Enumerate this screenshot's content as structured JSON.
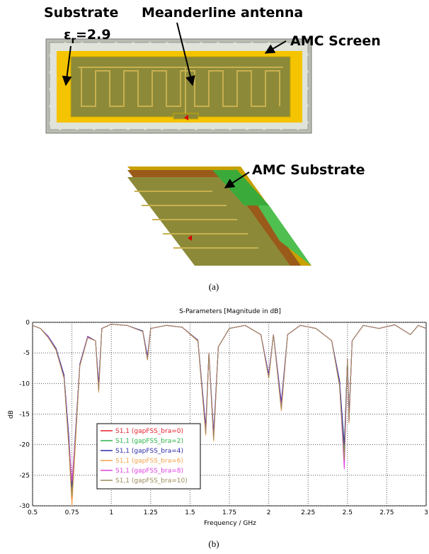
{
  "figure": {
    "labels": {
      "substrate": "Substrate",
      "permittivity": {
        "symbol": "ε",
        "sub": "r",
        "tail": "=2.9"
      },
      "meander": "Meanderline antenna",
      "amc_screen": "AMC Screen",
      "amc_substrate": "AMC Substrate"
    },
    "caption_a": "(a)",
    "caption_b": "(b)"
  },
  "chart_data": {
    "type": "line",
    "title": "S-Parameters [Magnitude in dB]",
    "xlabel": "Frequency / GHz",
    "ylabel": "dB",
    "xlim": [
      0.5,
      3
    ],
    "xticks": [
      0.5,
      0.75,
      1,
      1.25,
      1.5,
      1.75,
      2,
      2.25,
      2.5,
      2.75,
      3
    ],
    "ylim": [
      -30,
      0
    ],
    "yticks": [
      0,
      -5,
      -10,
      -15,
      -20,
      -25,
      -30
    ],
    "grid": true,
    "legend_loc": "lower left",
    "x": [
      0.5,
      0.55,
      0.6,
      0.65,
      0.7,
      0.73,
      0.75,
      0.77,
      0.8,
      0.85,
      0.9,
      0.92,
      0.94,
      1.0,
      1.1,
      1.2,
      1.23,
      1.25,
      1.35,
      1.45,
      1.55,
      1.6,
      1.62,
      1.65,
      1.68,
      1.75,
      1.85,
      1.95,
      2.0,
      2.03,
      2.08,
      2.12,
      2.2,
      2.3,
      2.4,
      2.45,
      2.48,
      2.5,
      2.51,
      2.53,
      2.6,
      2.7,
      2.8,
      2.9,
      2.95,
      3.0
    ],
    "series": [
      {
        "name": "S1,1 (gapFSS_bra=0)",
        "color": "#e8202a",
        "values": [
          -0.5,
          -1,
          -2.5,
          -4.5,
          -9,
          -20,
          -29,
          -20,
          -7,
          -2.5,
          -3,
          -11,
          -1,
          -0.3,
          -0.5,
          -1.5,
          -6,
          -1,
          -0.5,
          -0.8,
          -3,
          -18,
          -5,
          -19,
          -4,
          -1,
          -0.5,
          -2,
          -9,
          -2,
          -14,
          -2,
          -0.5,
          -1,
          -3,
          -10,
          -22,
          -6,
          -16,
          -3,
          -0.5,
          -1,
          -0.4,
          -2,
          -0.5,
          -1
        ]
      },
      {
        "name": "S1,1 (gapFSS_bra=2)",
        "color": "#2db34a",
        "values": [
          -0.5,
          -1,
          -2.4,
          -4.4,
          -8.8,
          -19,
          -28,
          -19,
          -7,
          -2.4,
          -3,
          -10.5,
          -1,
          -0.3,
          -0.5,
          -1.4,
          -5.8,
          -1,
          -0.5,
          -0.8,
          -3,
          -17.5,
          -5,
          -18.5,
          -4,
          -1,
          -0.5,
          -2,
          -8.8,
          -2,
          -13.5,
          -2,
          -0.5,
          -1,
          -3,
          -10,
          -21,
          -6,
          -15.5,
          -3,
          -0.5,
          -1,
          -0.4,
          -2,
          -0.5,
          -1
        ]
      },
      {
        "name": "S1,1 (gapFSS_bra=4)",
        "color": "#2a2aa8",
        "values": [
          -0.5,
          -1,
          -2.3,
          -4.3,
          -8.6,
          -18.5,
          -27,
          -19,
          -6.8,
          -2.3,
          -3,
          -10,
          -1,
          -0.3,
          -0.5,
          -1.4,
          -5.5,
          -1,
          -0.5,
          -0.8,
          -2.9,
          -17,
          -5,
          -18,
          -4,
          -1,
          -0.5,
          -2,
          -8.5,
          -2,
          -13,
          -2,
          -0.5,
          -1,
          -3,
          -9.5,
          -20,
          -6,
          -15,
          -3,
          -0.5,
          -1,
          -0.4,
          -2,
          -0.5,
          -1
        ]
      },
      {
        "name": "S1,1 (gapFSS_bra=6)",
        "color": "#f5a04a",
        "values": [
          -0.5,
          -1,
          -2.5,
          -4.6,
          -9.2,
          -20.5,
          -30,
          -21,
          -7.2,
          -2.5,
          -3,
          -11.5,
          -1,
          -0.3,
          -0.5,
          -1.5,
          -6.2,
          -1,
          -0.5,
          -0.8,
          -3.1,
          -18.5,
          -5,
          -19.5,
          -4,
          -1,
          -0.5,
          -2,
          -9.2,
          -2,
          -14.5,
          -2,
          -0.5,
          -1,
          -3,
          -10.5,
          -23,
          -6,
          -16.5,
          -3,
          -0.5,
          -1,
          -0.4,
          -2,
          -0.5,
          -1
        ]
      },
      {
        "name": "S1,1 (gapFSS_bra=8)",
        "color": "#e040e0",
        "values": [
          -0.5,
          -1,
          -2.4,
          -4.5,
          -9,
          -19.5,
          -26,
          -19.5,
          -7,
          -2.4,
          -3,
          -10.8,
          -1,
          -0.3,
          -0.5,
          -1.5,
          -5.9,
          -1,
          -0.5,
          -0.8,
          -3,
          -17.8,
          -5,
          -18.8,
          -4,
          -1,
          -0.5,
          -2,
          -8.9,
          -2,
          -13.8,
          -2,
          -0.5,
          -1,
          -3,
          -10.2,
          -24,
          -6,
          -16.2,
          -3,
          -0.5,
          -1,
          -0.4,
          -2,
          -0.5,
          -1
        ]
      },
      {
        "name": "S1,1 (gapFSS_bra=10)",
        "color": "#9a8a5a",
        "values": [
          -0.5,
          -1,
          -2.5,
          -4.5,
          -9.1,
          -20,
          -28.5,
          -20,
          -7.1,
          -2.5,
          -3,
          -11.2,
          -1,
          -0.3,
          -0.5,
          -1.5,
          -6.1,
          -1,
          -0.5,
          -0.8,
          -3,
          -18.2,
          -5,
          -19.2,
          -4,
          -1,
          -0.5,
          -2,
          -9.1,
          -2,
          -14.2,
          -2,
          -0.5,
          -1,
          -3,
          -10.3,
          -22.5,
          -6,
          -16.3,
          -3,
          -0.5,
          -1,
          -0.4,
          -2,
          -0.5,
          -1
        ]
      }
    ]
  }
}
